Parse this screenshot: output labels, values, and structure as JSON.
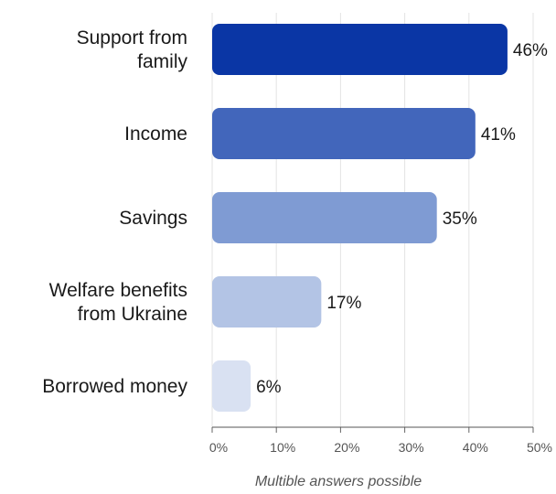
{
  "chart_data": {
    "type": "bar",
    "orientation": "horizontal",
    "categories": [
      "Support from family",
      "Income",
      "Savings",
      "Welfare benefits from Ukraine",
      "Borrowed money"
    ],
    "category_lines": [
      [
        "Support from",
        "family"
      ],
      [
        "Income"
      ],
      [
        "Savings"
      ],
      [
        "Welfare benefits",
        "from Ukraine"
      ],
      [
        "Borrowed money"
      ]
    ],
    "values": [
      46,
      41,
      35,
      17,
      6
    ],
    "value_labels": [
      "46%",
      "41%",
      "35%",
      "17%",
      "6%"
    ],
    "bar_colors": [
      "#0a36a5",
      "#4266bb",
      "#7f9bd3",
      "#b3c4e5",
      "#d9e1f2"
    ],
    "xlim": [
      0,
      50
    ],
    "xticks": [
      0,
      10,
      20,
      30,
      40,
      50
    ],
    "xtick_labels": [
      "0%",
      "10%",
      "20%",
      "30%",
      "40%",
      "50%"
    ],
    "grid": true,
    "footnote": "Multible answers possible"
  }
}
